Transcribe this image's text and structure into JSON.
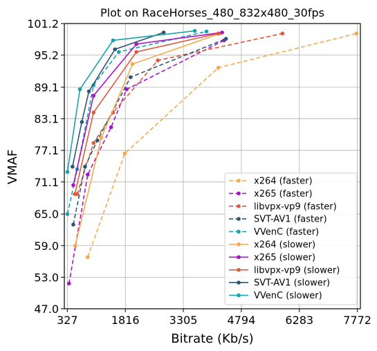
{
  "chart_data": {
    "type": "line",
    "title": "Plot on RaceHorses_480_832x480_30fps",
    "xlabel": "Bitrate (Kb/s)",
    "ylabel": "VMAF",
    "xlim": [
      250,
      7850
    ],
    "ylim": [
      47.0,
      101.2
    ],
    "xticks": [
      "327",
      "1816",
      "3305",
      "4794",
      "6283",
      "7772"
    ],
    "yticks": [
      "47.0",
      "53.0",
      "59.0",
      "65.0",
      "71.1",
      "77.1",
      "83.1",
      "89.1",
      "95.2",
      "101.2"
    ],
    "grid": true,
    "legend_position": "bottom-right",
    "series": [
      {
        "name": "x264 (faster)",
        "color": "#f4a94e",
        "dash": "dashed",
        "points": [
          [
            850,
            56.8
          ],
          [
            1800,
            76.5
          ],
          [
            4200,
            92.8
          ],
          [
            7750,
            99.3
          ]
        ]
      },
      {
        "name": "x265 (faster)",
        "color": "#a813c8",
        "dash": "dashed",
        "points": [
          [
            370,
            51.8
          ],
          [
            850,
            72.5
          ],
          [
            1450,
            81.5
          ],
          [
            1850,
            88.7
          ],
          [
            4350,
            98.0
          ]
        ]
      },
      {
        "name": "libvpx-vp9 (faster)",
        "color": "#de5a3e",
        "dash": "dashed",
        "points": [
          [
            580,
            68.8
          ],
          [
            1000,
            78.5
          ],
          [
            1500,
            84.3
          ],
          [
            2650,
            94.2
          ],
          [
            5850,
            99.3
          ]
        ]
      },
      {
        "name": "SVT-AV1 (faster)",
        "color": "#2f5575",
        "dash": "dashed",
        "points": [
          [
            480,
            63.0
          ],
          [
            780,
            74.0
          ],
          [
            1100,
            79.0
          ],
          [
            1950,
            91.0
          ],
          [
            4400,
            98.3
          ]
        ]
      },
      {
        "name": "VVenC (faster)",
        "color": "#17a2ad",
        "dash": "dashed",
        "points": [
          [
            330,
            65.0
          ],
          [
            580,
            73.5
          ],
          [
            1000,
            89.5
          ],
          [
            1650,
            95.8
          ],
          [
            3900,
            99.7
          ]
        ]
      },
      {
        "name": "x264 (slower)",
        "color": "#f4a94e",
        "dash": "solid",
        "points": [
          [
            530,
            59.0
          ],
          [
            1200,
            79.5
          ],
          [
            2000,
            93.5
          ],
          [
            4250,
            99.3
          ]
        ]
      },
      {
        "name": "x265 (slower)",
        "color": "#a813c8",
        "dash": "solid",
        "points": [
          [
            480,
            70.5
          ],
          [
            1000,
            87.5
          ],
          [
            2100,
            97.3
          ],
          [
            4300,
            99.5
          ]
        ]
      },
      {
        "name": "libvpx-vp9 (slower)",
        "color": "#de5a3e",
        "dash": "solid",
        "points": [
          [
            520,
            68.8
          ],
          [
            1000,
            84.3
          ],
          [
            2100,
            95.8
          ],
          [
            4200,
            99.3
          ]
        ]
      },
      {
        "name": "SVT-AV1 (slower)",
        "color": "#2f5575",
        "dash": "solid",
        "points": [
          [
            460,
            74.0
          ],
          [
            700,
            82.5
          ],
          [
            880,
            88.3
          ],
          [
            1550,
            96.3
          ],
          [
            2800,
            99.5
          ]
        ]
      },
      {
        "name": "VVenC (slower)",
        "color": "#17a2ad",
        "dash": "solid",
        "points": [
          [
            330,
            73.0
          ],
          [
            650,
            88.7
          ],
          [
            1500,
            98.0
          ],
          [
            3600,
            99.8
          ]
        ]
      }
    ]
  }
}
